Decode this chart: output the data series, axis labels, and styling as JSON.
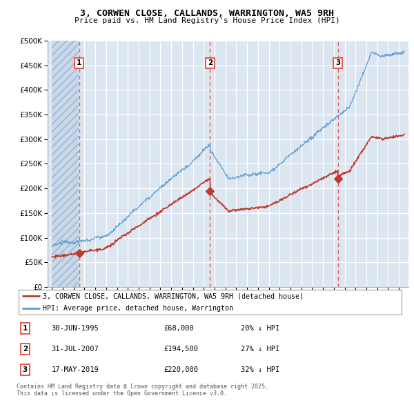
{
  "title": "3, CORWEN CLOSE, CALLANDS, WARRINGTON, WA5 9RH",
  "subtitle": "Price paid vs. HM Land Registry's House Price Index (HPI)",
  "legend_line1": "3, CORWEN CLOSE, CALLANDS, WARRINGTON, WA5 9RH (detached house)",
  "legend_line2": "HPI: Average price, detached house, Warrington",
  "footnote1": "Contains HM Land Registry data © Crown copyright and database right 2025.",
  "footnote2": "This data is licensed under the Open Government Licence v3.0.",
  "transactions": [
    {
      "num": 1,
      "date": "30-JUN-1995",
      "price": "£68,000",
      "hpi": "20% ↓ HPI",
      "year": 1995.5
    },
    {
      "num": 2,
      "date": "31-JUL-2007",
      "price": "£194,500",
      "hpi": "27% ↓ HPI",
      "year": 2007.58
    },
    {
      "num": 3,
      "date": "17-MAY-2019",
      "price": "£220,000",
      "hpi": "32% ↓ HPI",
      "year": 2019.37
    }
  ],
  "transaction_prices": [
    68000,
    194500,
    220000
  ],
  "transaction_years": [
    1995.5,
    2007.58,
    2019.37
  ],
  "ylim": [
    0,
    500000
  ],
  "yticks": [
    0,
    50000,
    100000,
    150000,
    200000,
    250000,
    300000,
    350000,
    400000,
    450000,
    500000
  ],
  "xlim_start": 1992.6,
  "xlim_end": 2025.9,
  "plot_bg": "#dce6f1",
  "hatch_color": "#b8cce4",
  "grid_color": "#ffffff",
  "red_line_color": "#c0392b",
  "blue_line_color": "#5b9bd5",
  "vline_color": "#e74c3c",
  "marker_color": "#c0392b",
  "box_color": "#e74c3c",
  "fig_width": 6.0,
  "fig_height": 5.9
}
